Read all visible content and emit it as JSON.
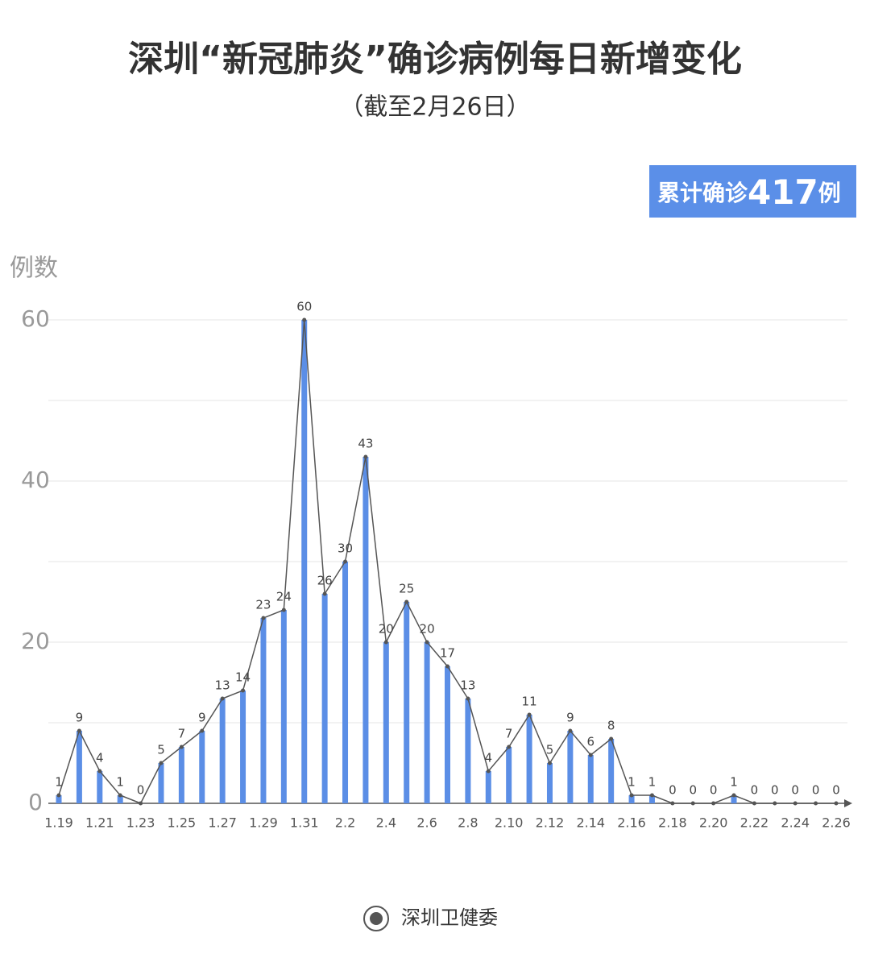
{
  "chart_data": {
    "type": "bar",
    "title": "深圳“新冠肺炎”确诊病例每日新增变化",
    "subtitle": "（截至2月26日）",
    "badge": {
      "prefix": "累计确诊",
      "total": 417,
      "suffix": "例"
    },
    "y_label": "例数",
    "source": "深圳卫健委",
    "categories": [
      "1.19",
      null,
      "1.21",
      null,
      "1.23",
      null,
      "1.25",
      null,
      "1.27",
      null,
      "1.29",
      null,
      "1.31",
      null,
      "2.2",
      null,
      "2.4",
      null,
      "2.6",
      null,
      "2.8",
      null,
      "2.10",
      null,
      "2.12",
      null,
      "2.14",
      null,
      "2.16",
      null,
      "2.18",
      null,
      "2.20",
      null,
      "2.22",
      null,
      "2.24",
      null,
      "2.26"
    ],
    "values": [
      1,
      9,
      4,
      1,
      0,
      5,
      7,
      9,
      13,
      14,
      23,
      24,
      60,
      26,
      30,
      43,
      20,
      25,
      20,
      17,
      13,
      4,
      7,
      11,
      5,
      9,
      6,
      8,
      1,
      1,
      0,
      0,
      0,
      1,
      0,
      0,
      0,
      0,
      0
    ],
    "color": "#5b8ee6",
    "line_color": "#555555",
    "line_overlay": true,
    "ylim": [
      0,
      60
    ],
    "yticks": [
      0,
      20,
      40,
      60
    ],
    "minor_yticks": [
      10,
      30,
      50
    ],
    "grid": true
  }
}
